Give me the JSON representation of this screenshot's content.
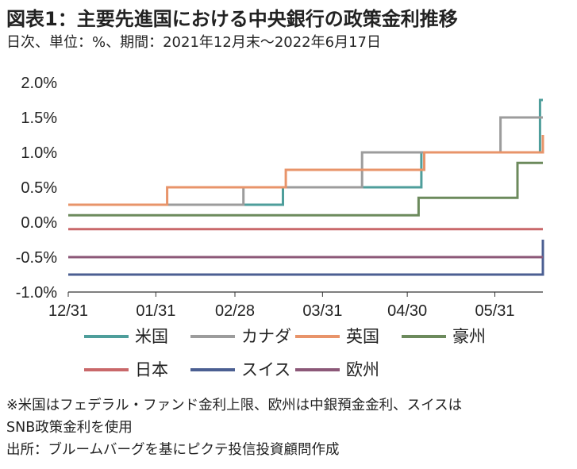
{
  "title": "図表1：主要先進国における中央銀行の政策金利推移",
  "subtitle": "日次、単位：%、期間：2021年12月末～2022年6月17日",
  "notes": [
    "※米国はフェデラル・ファンド金利上限、欧州は中銀預金金利、スイスは",
    "SNB政策金利を使用",
    "出所：ブルームバーグを基にピクテ投信投資顧問作成"
  ],
  "chart_data": {
    "type": "line",
    "x_range": [
      "2021-12-31",
      "2022-06-17"
    ],
    "x_ticks": [
      {
        "date": "2021-12-31",
        "label": "12/31"
      },
      {
        "date": "2022-01-31",
        "label": "01/31"
      },
      {
        "date": "2022-02-28",
        "label": "02/28"
      },
      {
        "date": "2022-03-31",
        "label": "03/31"
      },
      {
        "date": "2022-04-30",
        "label": "04/30"
      },
      {
        "date": "2022-05-31",
        "label": "05/31"
      }
    ],
    "y_ticks": [
      {
        "value": 2.0,
        "label": "2.0%"
      },
      {
        "value": 1.5,
        "label": "1.5%"
      },
      {
        "value": 1.0,
        "label": "1.0%"
      },
      {
        "value": 0.5,
        "label": "0.5%"
      },
      {
        "value": 0.0,
        "label": "0.0%"
      },
      {
        "value": -0.5,
        "label": "-0.5%"
      },
      {
        "value": -1.0,
        "label": "-1.0%"
      }
    ],
    "ylim": [
      -1.0,
      2.0
    ],
    "grid": false,
    "legend_position": "bottom",
    "series": [
      {
        "name": "米国",
        "color": "#4e9e9b",
        "steps": [
          [
            "2021-12-31",
            0.25
          ],
          [
            "2022-03-17",
            0.5
          ],
          [
            "2022-05-05",
            1.0
          ],
          [
            "2022-06-16",
            1.75
          ]
        ]
      },
      {
        "name": "カナダ",
        "color": "#9c9c9c",
        "steps": [
          [
            "2021-12-31",
            0.25
          ],
          [
            "2022-03-03",
            0.5
          ],
          [
            "2022-04-14",
            1.0
          ],
          [
            "2022-06-02",
            1.5
          ]
        ]
      },
      {
        "name": "英国",
        "color": "#e8946a",
        "steps": [
          [
            "2021-12-31",
            0.25
          ],
          [
            "2022-02-04",
            0.5
          ],
          [
            "2022-03-18",
            0.75
          ],
          [
            "2022-05-06",
            1.0
          ],
          [
            "2022-06-17",
            1.25
          ]
        ]
      },
      {
        "name": "豪州",
        "color": "#6c8a5c",
        "steps": [
          [
            "2021-12-31",
            0.1
          ],
          [
            "2022-05-04",
            0.35
          ],
          [
            "2022-06-08",
            0.85
          ]
        ]
      },
      {
        "name": "日本",
        "color": "#c9686a",
        "steps": [
          [
            "2021-12-31",
            -0.1
          ]
        ]
      },
      {
        "name": "スイス",
        "color": "#4b5f92",
        "steps": [
          [
            "2021-12-31",
            -0.75
          ],
          [
            "2022-06-17",
            -0.25
          ]
        ]
      },
      {
        "name": "欧州",
        "color": "#8c5878",
        "steps": [
          [
            "2021-12-31",
            -0.5
          ]
        ]
      }
    ]
  }
}
